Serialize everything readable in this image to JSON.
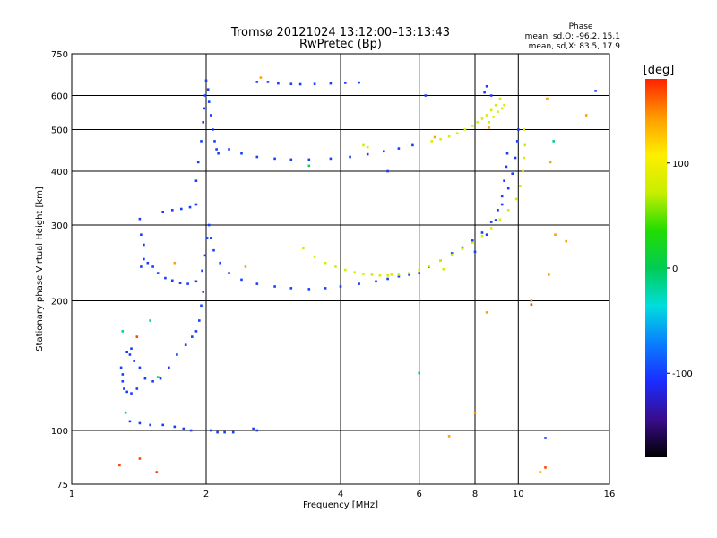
{
  "chart_data": {
    "type": "scatter",
    "title": "Tromsø 20121024 13:12:00–13:13:43",
    "subtitle": "RwPretec (Bp)",
    "xlabel": "Frequency [MHz]",
    "ylabel": "Stationary phase Virtual Height [km]",
    "xscale": "log",
    "yscale": "log",
    "xlim": [
      1,
      16
    ],
    "ylim": [
      75,
      750
    ],
    "x_ticks": [
      1,
      2,
      4,
      6,
      8,
      10,
      16
    ],
    "y_ticks": [
      75,
      100,
      200,
      300,
      400,
      500,
      600,
      750
    ],
    "grid_x": [
      2,
      4,
      6,
      8,
      10
    ],
    "grid_y": [
      100,
      200,
      300,
      400,
      500,
      600
    ],
    "stats": {
      "heading": "Phase",
      "line_o": "mean, sd,O: -96.2, 15.1",
      "line_x": "mean, sd,X:  83.5, 17.9"
    },
    "colorbar": {
      "label": "[deg]",
      "range": [
        -180,
        180
      ],
      "ticks": [
        100,
        0,
        -100
      ],
      "colors": [
        "#000000",
        "#3a0c8c",
        "#1a2cff",
        "#0a7dff",
        "#00dddd",
        "#00cc55",
        "#22dd00",
        "#c8ee00",
        "#ffee00",
        "#ff9900",
        "#ff2200"
      ]
    },
    "series": [
      {
        "phase": -100,
        "points": [
          [
            1.29,
            140
          ],
          [
            1.3,
            135
          ],
          [
            1.3,
            130
          ],
          [
            1.31,
            125
          ],
          [
            1.33,
            123
          ],
          [
            1.36,
            122
          ],
          [
            1.4,
            125
          ],
          [
            1.38,
            145
          ],
          [
            1.35,
            150
          ],
          [
            1.33,
            152
          ],
          [
            1.36,
            155
          ],
          [
            1.42,
            140
          ],
          [
            1.46,
            132
          ],
          [
            1.52,
            130
          ],
          [
            1.58,
            132
          ],
          [
            1.65,
            140
          ],
          [
            1.72,
            150
          ],
          [
            1.8,
            158
          ],
          [
            1.86,
            165
          ],
          [
            1.9,
            170
          ],
          [
            1.93,
            180
          ],
          [
            1.95,
            195
          ],
          [
            1.97,
            210
          ],
          [
            1.42,
            310
          ],
          [
            1.43,
            285
          ],
          [
            1.45,
            270
          ],
          [
            1.45,
            250
          ],
          [
            1.43,
            240
          ],
          [
            1.48,
            245
          ],
          [
            1.52,
            240
          ],
          [
            1.56,
            232
          ],
          [
            1.62,
            226
          ],
          [
            1.68,
            223
          ],
          [
            1.75,
            220
          ],
          [
            1.82,
            219
          ],
          [
            1.9,
            222
          ],
          [
            1.96,
            235
          ],
          [
            1.99,
            255
          ],
          [
            2.01,
            280
          ],
          [
            2.03,
            300
          ],
          [
            2.05,
            280
          ],
          [
            2.08,
            262
          ],
          [
            2.15,
            245
          ],
          [
            2.25,
            232
          ],
          [
            2.4,
            224
          ],
          [
            2.6,
            219
          ],
          [
            2.85,
            216
          ],
          [
            3.1,
            214
          ],
          [
            3.4,
            213
          ],
          [
            3.7,
            214
          ],
          [
            4.0,
            216
          ],
          [
            4.4,
            219
          ],
          [
            4.8,
            222
          ],
          [
            5.1,
            225
          ],
          [
            5.4,
            228
          ],
          [
            5.7,
            230
          ],
          [
            6.0,
            232
          ],
          [
            1.6,
            322
          ],
          [
            1.68,
            325
          ],
          [
            1.76,
            327
          ],
          [
            1.84,
            330
          ],
          [
            1.9,
            335
          ],
          [
            1.9,
            380
          ],
          [
            1.92,
            420
          ],
          [
            1.95,
            470
          ],
          [
            1.97,
            520
          ],
          [
            1.98,
            560
          ],
          [
            1.99,
            600
          ],
          [
            2.0,
            650
          ],
          [
            2.02,
            620
          ],
          [
            2.03,
            580
          ],
          [
            2.05,
            540
          ],
          [
            2.07,
            500
          ],
          [
            2.09,
            470
          ],
          [
            2.11,
            450
          ],
          [
            2.13,
            440
          ],
          [
            2.25,
            450
          ],
          [
            2.4,
            440
          ],
          [
            2.6,
            432
          ],
          [
            2.85,
            428
          ],
          [
            3.1,
            426
          ],
          [
            3.4,
            426
          ],
          [
            3.8,
            428
          ],
          [
            4.2,
            432
          ],
          [
            4.6,
            438
          ],
          [
            5.0,
            445
          ],
          [
            5.4,
            452
          ],
          [
            5.8,
            460
          ],
          [
            2.6,
            645
          ],
          [
            2.75,
            645
          ],
          [
            2.9,
            640
          ],
          [
            3.1,
            638
          ],
          [
            3.25,
            637
          ],
          [
            3.5,
            638
          ],
          [
            3.8,
            640
          ],
          [
            4.1,
            642
          ],
          [
            4.4,
            643
          ],
          [
            6.3,
            240
          ],
          [
            6.7,
            248
          ],
          [
            7.1,
            258
          ],
          [
            7.5,
            266
          ],
          [
            7.9,
            276
          ],
          [
            8.3,
            288
          ],
          [
            8.7,
            305
          ],
          [
            9.0,
            325
          ],
          [
            9.2,
            350
          ],
          [
            9.3,
            380
          ],
          [
            9.4,
            410
          ],
          [
            9.45,
            440
          ],
          [
            8.0,
            260
          ],
          [
            8.5,
            285
          ],
          [
            8.9,
            308
          ],
          [
            9.2,
            335
          ],
          [
            9.5,
            365
          ],
          [
            9.7,
            395
          ],
          [
            9.85,
            430
          ],
          [
            9.95,
            470
          ],
          [
            10.0,
            500
          ],
          [
            8.4,
            610
          ],
          [
            8.5,
            630
          ],
          [
            8.7,
            600
          ],
          [
            1.35,
            105
          ],
          [
            1.42,
            104
          ],
          [
            1.5,
            103
          ],
          [
            1.6,
            103
          ],
          [
            1.7,
            102
          ],
          [
            1.78,
            101
          ],
          [
            1.85,
            100
          ],
          [
            2.05,
            100
          ],
          [
            2.12,
            99
          ],
          [
            2.2,
            99
          ],
          [
            2.3,
            99
          ],
          [
            2.55,
            101
          ],
          [
            2.6,
            100
          ],
          [
            6.2,
            600
          ],
          [
            11.5,
            96
          ],
          [
            14.9,
            615
          ],
          [
            5.1,
            400
          ]
        ]
      },
      {
        "phase": 80,
        "points": [
          [
            3.3,
            265
          ],
          [
            3.5,
            253
          ],
          [
            3.7,
            245
          ],
          [
            3.9,
            240
          ],
          [
            4.1,
            236
          ],
          [
            4.3,
            233
          ],
          [
            4.5,
            231
          ],
          [
            4.7,
            230
          ],
          [
            4.9,
            229
          ],
          [
            5.1,
            229
          ],
          [
            5.4,
            230
          ],
          [
            5.7,
            232
          ],
          [
            6.0,
            236
          ],
          [
            6.3,
            241
          ],
          [
            6.7,
            248
          ],
          [
            7.1,
            256
          ],
          [
            7.5,
            264
          ],
          [
            7.9,
            273
          ],
          [
            8.3,
            283
          ],
          [
            8.7,
            295
          ],
          [
            9.1,
            309
          ],
          [
            9.5,
            325
          ],
          [
            9.9,
            345
          ],
          [
            10.1,
            370
          ],
          [
            10.25,
            400
          ],
          [
            10.3,
            430
          ],
          [
            10.35,
            460
          ],
          [
            10.3,
            500
          ],
          [
            6.4,
            470
          ],
          [
            6.7,
            475
          ],
          [
            7.0,
            482
          ],
          [
            7.3,
            490
          ],
          [
            7.6,
            500
          ],
          [
            7.9,
            510
          ],
          [
            8.1,
            520
          ],
          [
            8.3,
            530
          ],
          [
            8.5,
            540
          ],
          [
            8.7,
            555
          ],
          [
            8.9,
            570
          ],
          [
            9.1,
            590
          ],
          [
            8.6,
            520
          ],
          [
            8.8,
            535
          ],
          [
            9.0,
            550
          ],
          [
            9.2,
            560
          ],
          [
            9.3,
            570
          ],
          [
            4.5,
            460
          ],
          [
            4.6,
            455
          ],
          [
            5.2,
            230
          ],
          [
            6.8,
            237
          ]
        ]
      },
      {
        "phase": 140,
        "points": [
          [
            2.65,
            660
          ],
          [
            1.7,
            245
          ],
          [
            2.45,
            240
          ],
          [
            8.6,
            505
          ],
          [
            11.8,
            420
          ],
          [
            11.7,
            230
          ],
          [
            12.1,
            285
          ],
          [
            12.8,
            275
          ],
          [
            14.2,
            540
          ],
          [
            8.0,
            110
          ],
          [
            7.0,
            97
          ],
          [
            8.5,
            188
          ],
          [
            11.2,
            80
          ],
          [
            10.7,
            200
          ],
          [
            11.6,
            590
          ],
          [
            6.5,
            480
          ]
        ]
      },
      {
        "phase": -10,
        "points": [
          [
            1.5,
            180
          ],
          [
            1.56,
            133
          ],
          [
            1.32,
            110
          ],
          [
            6.0,
            136
          ],
          [
            12.0,
            470
          ],
          [
            3.4,
            412
          ],
          [
            1.3,
            170
          ]
        ]
      },
      {
        "phase": 170,
        "points": [
          [
            1.28,
            83
          ],
          [
            1.42,
            86
          ],
          [
            1.55,
            80
          ],
          [
            1.4,
            165
          ],
          [
            10.7,
            196
          ],
          [
            11.5,
            82
          ]
        ]
      }
    ]
  }
}
